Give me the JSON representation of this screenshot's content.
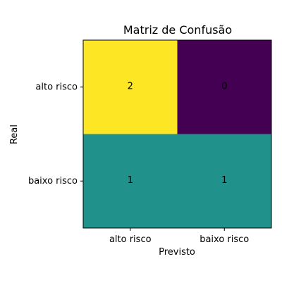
{
  "chart_data": {
    "type": "heatmap",
    "title": "Matriz de Confusão",
    "xlabel": "Previsto",
    "ylabel": "Real",
    "x_categories": [
      "alto risco",
      "baixo risco"
    ],
    "y_categories": [
      "alto risco",
      "baixo risco"
    ],
    "values": [
      [
        2,
        0
      ],
      [
        1,
        1
      ]
    ],
    "value_range": [
      0,
      2
    ],
    "colormap": "viridis",
    "colors": {
      "min": "#440154",
      "mid": "#21918c",
      "max": "#fde725"
    },
    "grid": false,
    "colorbar": false
  }
}
